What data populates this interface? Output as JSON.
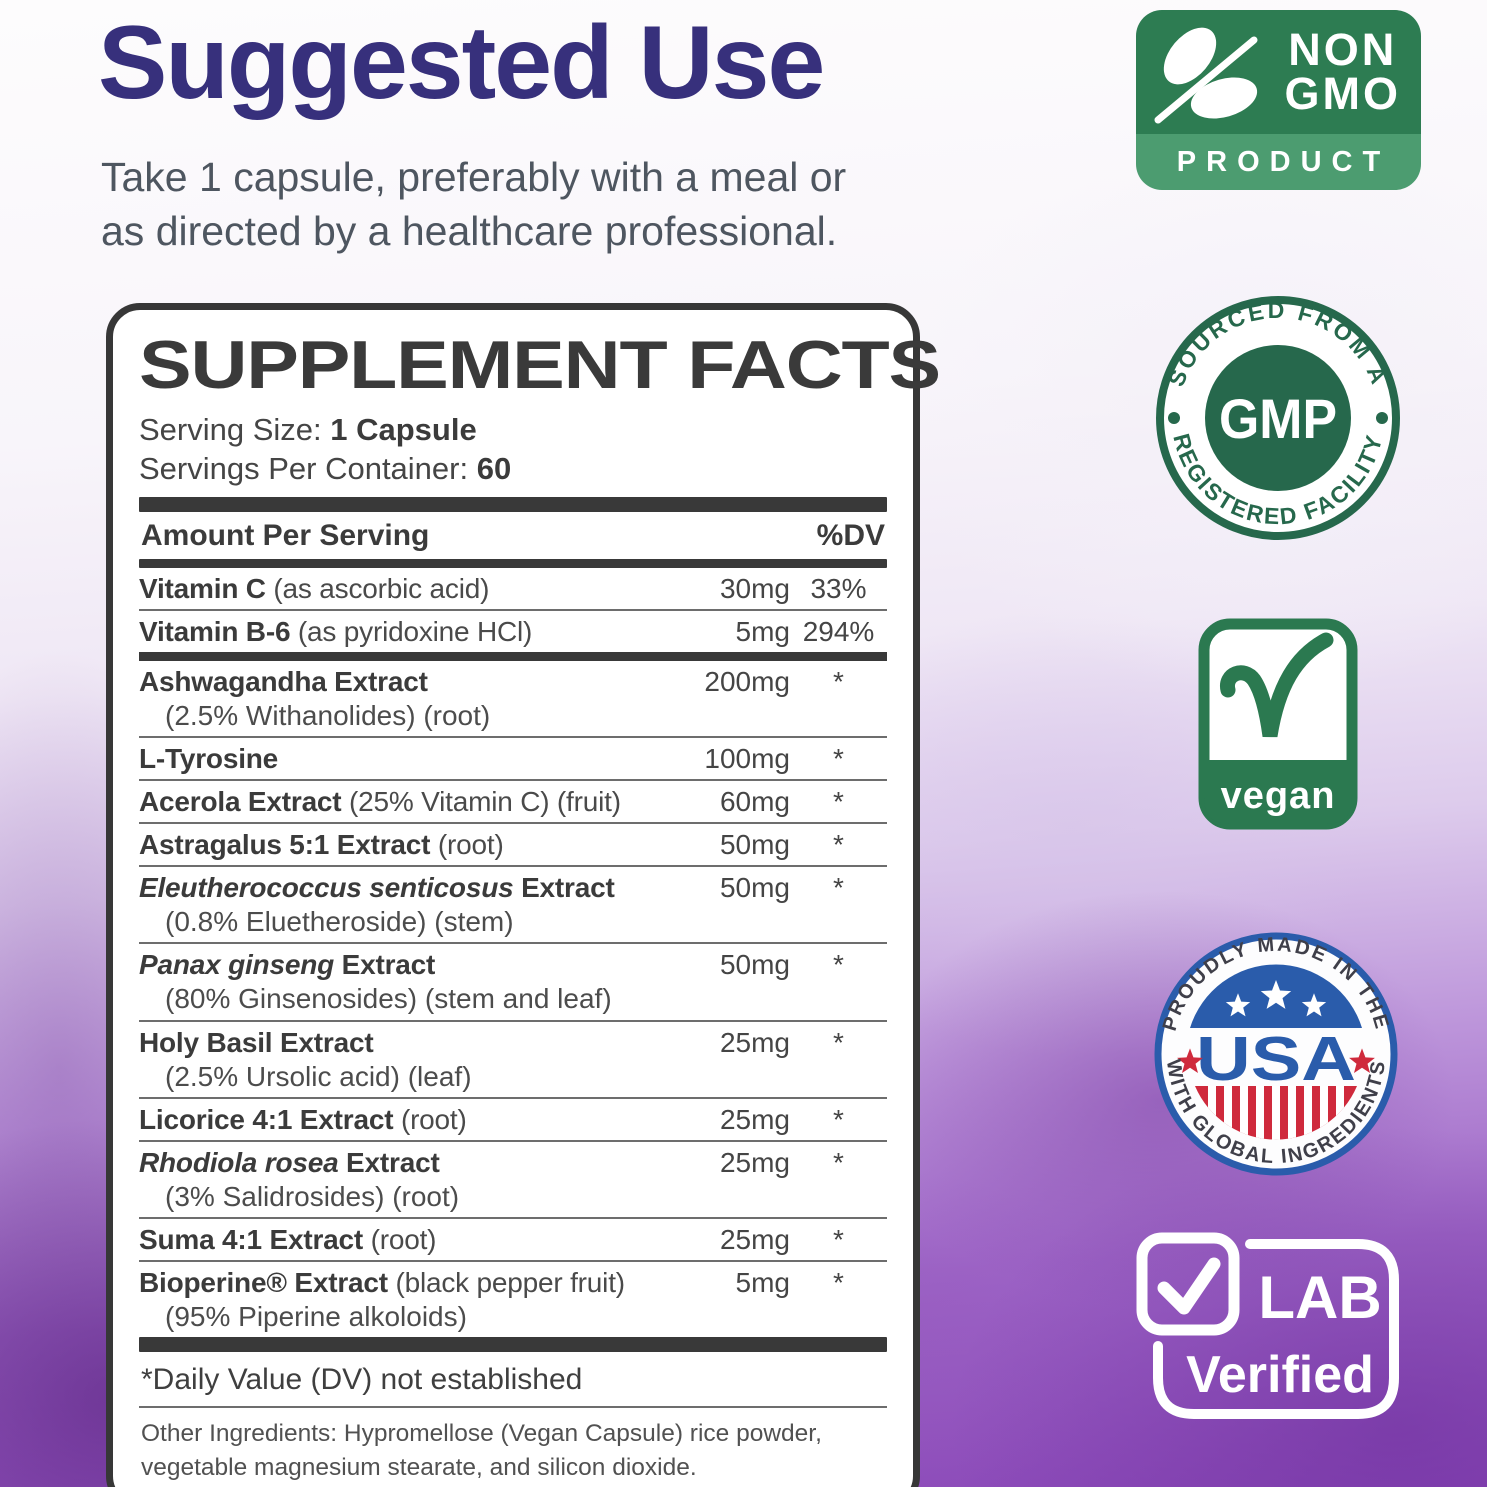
{
  "header": {
    "title": "Suggested Use",
    "subtitle_line1": "Take 1 capsule, preferably with a meal or",
    "subtitle_line2": "as directed by a healthcare professional."
  },
  "supplement_facts": {
    "title": "SUPPLEMENT FACTS",
    "serving_size_label": "Serving Size:",
    "serving_size_value": "1 Capsule",
    "servings_label": "Servings Per Container:",
    "servings_value": "60",
    "columns": {
      "amount": "Amount Per Serving",
      "dv": "%DV"
    },
    "rows": [
      {
        "name": "Vitamin C",
        "detail": "(as ascorbic acid)",
        "amount": "30mg",
        "dv": "33%",
        "sep": "thin"
      },
      {
        "name": "Vitamin B-6",
        "detail": "(as pyridoxine HCl)",
        "amount": "5mg",
        "dv": "294%",
        "sep": "thick"
      },
      {
        "name": "Ashwagandha Extract",
        "sub": "(2.5% Withanolides) (root)",
        "amount": "200mg",
        "dv": "*",
        "sep": "thin"
      },
      {
        "name": "L-Tyrosine",
        "amount": "100mg",
        "dv": "*",
        "sep": "thin"
      },
      {
        "name": "Acerola Extract",
        "detail": "(25% Vitamin C) (fruit)",
        "amount": "60mg",
        "dv": "*",
        "sep": "thin"
      },
      {
        "name": "Astragalus 5:1 Extract",
        "detail": "(root)",
        "amount": "50mg",
        "dv": "*",
        "sep": "thin"
      },
      {
        "name_italic": "Eleutherococcus senticosus",
        "name": " Extract",
        "sub": "(0.8% Eluetheroside) (stem)",
        "amount": "50mg",
        "dv": "*",
        "sep": "thin"
      },
      {
        "name_italic": "Panax ginseng",
        "name": " Extract",
        "sub": "(80% Ginsenosides) (stem and leaf)",
        "amount": "50mg",
        "dv": "*",
        "sep": "thin"
      },
      {
        "name": "Holy Basil Extract",
        "sub": "(2.5% Ursolic acid) (leaf)",
        "amount": "25mg",
        "dv": "*",
        "sep": "thin"
      },
      {
        "name": "Licorice 4:1 Extract",
        "detail": "(root)",
        "amount": "25mg",
        "dv": "*",
        "sep": "thin"
      },
      {
        "name_italic": "Rhodiola rosea",
        "name": " Extract",
        "sub": "(3% Salidrosides) (root)",
        "amount": "25mg",
        "dv": "*",
        "sep": "thin"
      },
      {
        "name": "Suma 4:1 Extract",
        "detail": "(root)",
        "amount": "25mg",
        "dv": "*",
        "sep": "thin"
      },
      {
        "name": "Bioperine® Extract",
        "detail": "(black pepper fruit)",
        "sub": "(95% Piperine alkoloids)",
        "amount": "5mg",
        "dv": "*",
        "sep": "none"
      }
    ],
    "footnote": "*Daily Value (DV) not established",
    "other_ingredients": "Other Ingredients: Hypromellose (Vegan Capsule) rice powder, vegetable magnesium stearate, and silicon dioxide."
  },
  "badges": {
    "non_gmo": {
      "line1": "NON",
      "line2": "GMO",
      "strip": "PRODUCT"
    },
    "gmp": {
      "arc_top": "SOURCED FROM A",
      "center": "GMP",
      "arc_bottom": "REGISTERED FACILITY"
    },
    "vegan": {
      "label": "vegan"
    },
    "usa": {
      "arc_top": "PROUDLY MADE IN THE",
      "center": "USA",
      "arc_bottom": "WITH GLOBAL INGREDIENTS"
    },
    "lab": {
      "line1": "LAB",
      "line2": "Verified"
    }
  },
  "colors": {
    "title_purple": "#37307c",
    "panel_ink": "#393939",
    "nongmo_green_dark": "#2d7c52",
    "nongmo_green_light": "#4c9c70",
    "gmp_green": "#26684c",
    "vegan_green": "#2b7950",
    "usa_blue": "#2a5cab",
    "usa_red": "#cf2a3c",
    "background_purple": "#8a48b8"
  }
}
